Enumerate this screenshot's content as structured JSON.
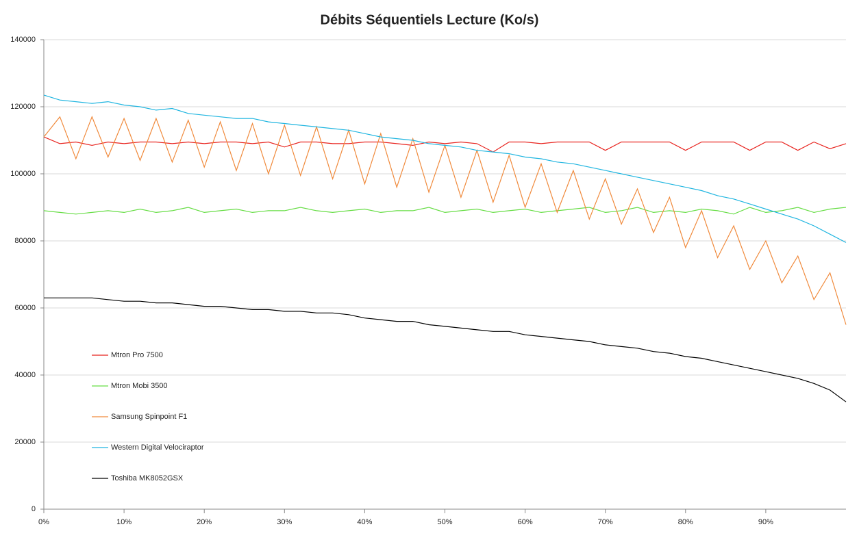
{
  "chart_data": {
    "type": "line",
    "title": "Débits Séquentiels Lecture (Ko/s)",
    "x": [
      0,
      2,
      4,
      6,
      8,
      10,
      12,
      14,
      16,
      18,
      20,
      22,
      24,
      26,
      28,
      30,
      32,
      34,
      36,
      38,
      40,
      42,
      44,
      46,
      48,
      50,
      52,
      54,
      56,
      58,
      60,
      62,
      64,
      66,
      68,
      70,
      72,
      74,
      76,
      78,
      80,
      82,
      84,
      86,
      88,
      90,
      92,
      94,
      96,
      98,
      100
    ],
    "series": [
      {
        "name": "Mtron Pro 7500",
        "color": "#e8231e",
        "values": [
          111000,
          109000,
          109500,
          108500,
          109500,
          109000,
          109500,
          109500,
          109000,
          109500,
          109000,
          109500,
          109500,
          109000,
          109500,
          108000,
          109500,
          109500,
          109000,
          109000,
          109500,
          109500,
          109000,
          108500,
          109500,
          109000,
          109500,
          109000,
          106500,
          109500,
          109500,
          109000,
          109500,
          109500,
          109500,
          107000,
          109500,
          109500,
          109500,
          109500,
          107000,
          109500,
          109500,
          109500,
          107000,
          109500,
          109500,
          107000,
          109500,
          107500,
          109000
        ]
      },
      {
        "name": "Mtron Mobi 3500",
        "color": "#66dd44",
        "values": [
          89000,
          88500,
          88000,
          88500,
          89000,
          88500,
          89500,
          88500,
          89000,
          90000,
          88500,
          89000,
          89500,
          88500,
          89000,
          89000,
          90000,
          89000,
          88500,
          89000,
          89500,
          88500,
          89000,
          89000,
          90000,
          88500,
          89000,
          89500,
          88500,
          89000,
          89500,
          88500,
          89000,
          89500,
          90000,
          88500,
          89000,
          90000,
          88500,
          89000,
          88500,
          89500,
          89000,
          88000,
          90000,
          88500,
          89000,
          90000,
          88500,
          89500,
          90000
        ]
      },
      {
        "name": "Samsung Spinpoint F1",
        "color": "#f08a3c",
        "values": [
          111000,
          117000,
          104500,
          117000,
          105000,
          116500,
          104000,
          116500,
          103500,
          116000,
          102000,
          115500,
          101000,
          115000,
          100000,
          114500,
          99500,
          114000,
          98500,
          113000,
          97000,
          112000,
          96000,
          110500,
          94500,
          108500,
          93000,
          107000,
          91500,
          105500,
          90000,
          103000,
          88500,
          101000,
          86500,
          98500,
          85000,
          95500,
          82500,
          93000,
          78000,
          89000,
          75000,
          84500,
          71500,
          80000,
          67500,
          75500,
          62500,
          70500,
          55000
        ]
      },
      {
        "name": "Western Digital Velociraptor",
        "color": "#1fb5e0",
        "values": [
          123500,
          122000,
          121500,
          121000,
          121500,
          120500,
          120000,
          119000,
          119500,
          118000,
          117500,
          117000,
          116500,
          116500,
          115500,
          115000,
          114500,
          114000,
          113500,
          113000,
          112000,
          111000,
          110500,
          110000,
          109000,
          108500,
          108000,
          107000,
          106500,
          106000,
          105000,
          104500,
          103500,
          103000,
          102000,
          101000,
          100000,
          99000,
          98000,
          97000,
          96000,
          95000,
          93500,
          92500,
          91000,
          89500,
          88000,
          86500,
          84500,
          82000,
          79500
        ]
      },
      {
        "name": "Toshiba MK8052GSX",
        "color": "#000000",
        "values": [
          63000,
          63000,
          63000,
          63000,
          62500,
          62000,
          62000,
          61500,
          61500,
          61000,
          60500,
          60500,
          60000,
          59500,
          59500,
          59000,
          59000,
          58500,
          58500,
          58000,
          57000,
          56500,
          56000,
          56000,
          55000,
          54500,
          54000,
          53500,
          53000,
          53000,
          52000,
          51500,
          51000,
          50500,
          50000,
          49000,
          48500,
          48000,
          47000,
          46500,
          45500,
          45000,
          44000,
          43000,
          42000,
          41000,
          40000,
          39000,
          37500,
          35500,
          32000
        ]
      }
    ],
    "xlim": [
      0,
      100
    ],
    "xticks": [
      {
        "value": 0,
        "label": "0%"
      },
      {
        "value": 10,
        "label": "10%"
      },
      {
        "value": 20,
        "label": "20%"
      },
      {
        "value": 30,
        "label": "30%"
      },
      {
        "value": 40,
        "label": "40%"
      },
      {
        "value": 50,
        "label": "50%"
      },
      {
        "value": 60,
        "label": "60%"
      },
      {
        "value": 70,
        "label": "70%"
      },
      {
        "value": 80,
        "label": "80%"
      },
      {
        "value": 90,
        "label": "90%"
      }
    ],
    "ylim": [
      0,
      140000
    ],
    "yticks": [
      0,
      20000,
      40000,
      60000,
      80000,
      100000,
      120000,
      140000
    ],
    "grid": true,
    "legend": "lower left"
  }
}
